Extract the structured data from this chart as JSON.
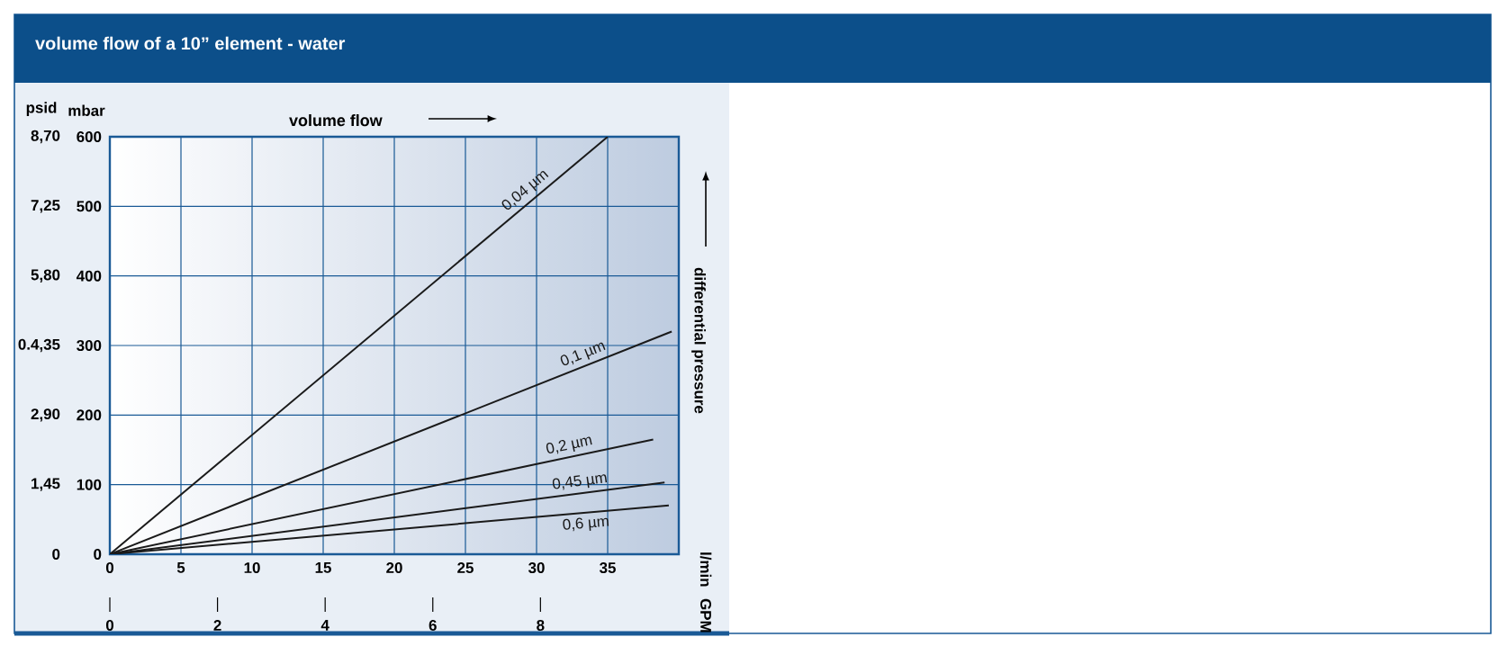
{
  "chart_data": {
    "type": "line",
    "title": "volume flow of a 10” element - water",
    "ylabel": "mbar",
    "y2label": "psid",
    "annotations": [
      "volume flow",
      "differential pressure",
      "l/min",
      "GPM"
    ],
    "xlim": [
      0,
      40
    ],
    "xticks": [
      0,
      5,
      10,
      15,
      20,
      25,
      30,
      35
    ],
    "x2lim": [
      0,
      10.57
    ],
    "x2ticks": [
      0,
      2,
      4,
      6,
      8
    ],
    "ylim": [
      0,
      600
    ],
    "yticks": [
      0,
      100,
      200,
      300,
      400,
      500,
      600
    ],
    "y2lim": [
      0,
      8.7
    ],
    "y2ticks": [
      0,
      {
        "value": 1.45,
        "label": "1,45"
      },
      {
        "value": 2.9,
        "label": "2,90"
      },
      {
        "value": 4.35,
        "label": "0.4,35"
      },
      {
        "value": 5.8,
        "label": "5,80"
      },
      {
        "value": 7.25,
        "label": "7,25"
      },
      {
        "value": 8.7,
        "label": "8,70"
      }
    ],
    "grid": true,
    "series": [
      {
        "name": "0,04 µm",
        "color": "#1a1a1a",
        "x": [
          0,
          35
        ],
        "values": [
          0,
          600
        ]
      },
      {
        "name": "0,1 µm",
        "color": "#1a1a1a",
        "x": [
          0,
          39.5
        ],
        "values": [
          0,
          320
        ]
      },
      {
        "name": "0,2 µm",
        "color": "#1a1a1a",
        "x": [
          0,
          38.2
        ],
        "values": [
          0,
          165
        ]
      },
      {
        "name": "0,45 µm",
        "color": "#1a1a1a",
        "x": [
          0,
          39
        ],
        "values": [
          0,
          103
        ]
      },
      {
        "name": "0,6 µm",
        "color": "#1a1a1a",
        "x": [
          0,
          39.3
        ],
        "values": [
          0,
          70
        ]
      }
    ]
  }
}
